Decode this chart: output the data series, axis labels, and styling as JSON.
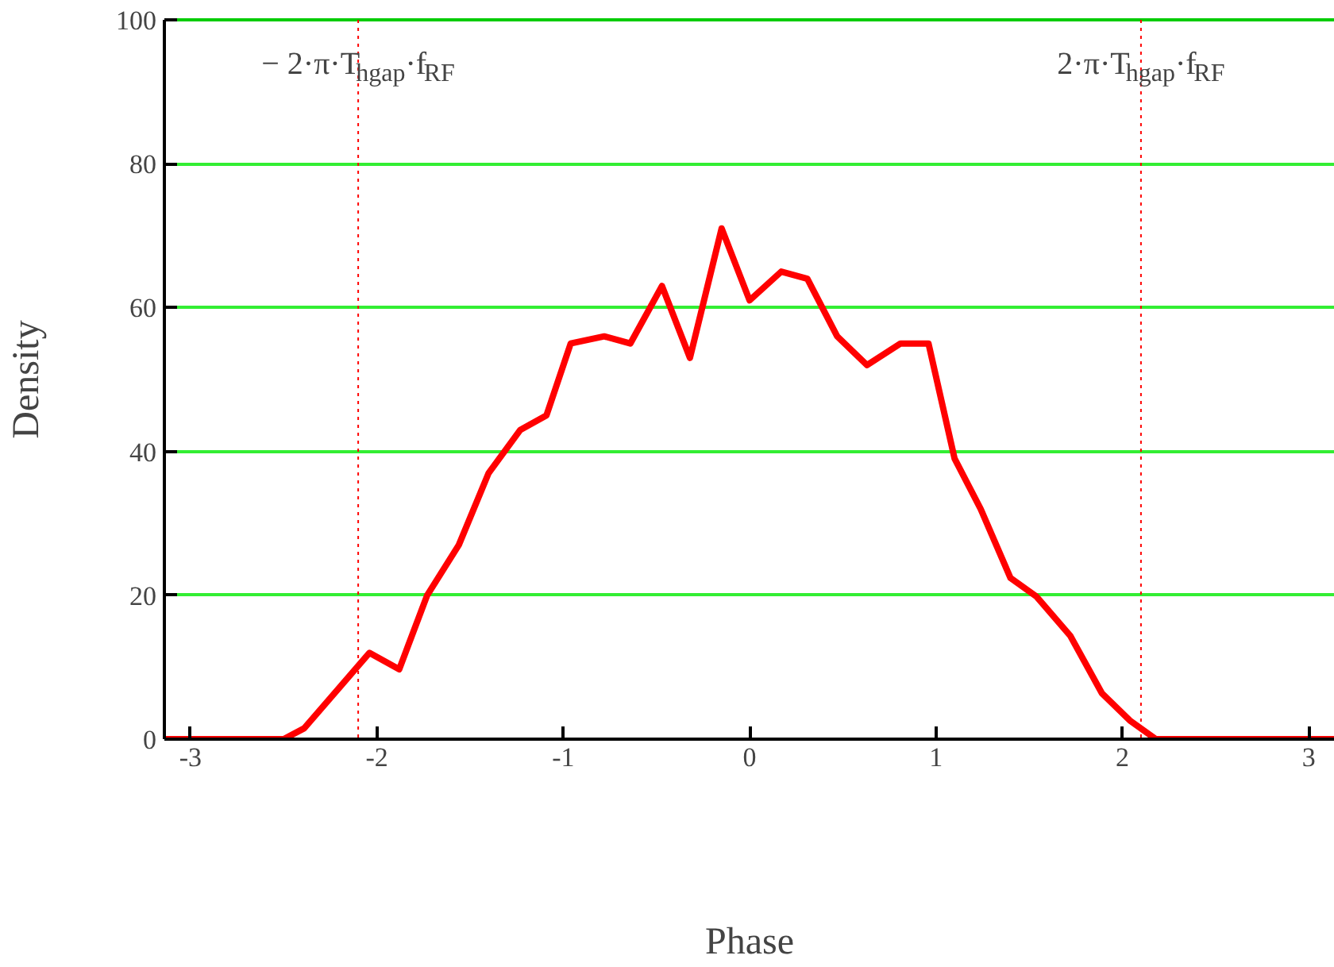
{
  "chart_data": {
    "type": "line",
    "xlabel": "Phase",
    "ylabel": "Density",
    "x": [
      -3.14,
      -2.5,
      -2.39,
      -2.19,
      -2.04,
      -1.88,
      -1.73,
      -1.56,
      -1.4,
      -1.23,
      -1.09,
      -0.96,
      -0.78,
      -0.64,
      -0.47,
      -0.32,
      -0.15,
      0.0,
      0.17,
      0.31,
      0.47,
      0.63,
      0.81,
      0.96,
      1.1,
      1.24,
      1.4,
      1.54,
      1.72,
      1.89,
      2.04,
      2.18,
      3.14
    ],
    "series": [
      {
        "color": "#ff0000",
        "values": [
          0,
          0,
          1.5,
          7.5,
          12,
          9.7,
          20,
          27,
          37,
          43,
          45,
          55,
          56,
          55,
          63,
          53,
          71,
          61,
          65,
          64,
          56,
          52,
          55,
          55,
          39,
          32,
          22.4,
          19.8,
          14.4,
          6.4,
          2.6,
          0,
          0
        ]
      }
    ],
    "xlim": [
      -3.14,
      3.14
    ],
    "ylim": [
      0,
      100
    ],
    "xticks": [
      -3,
      -2,
      -1,
      0,
      1,
      2,
      3
    ],
    "yticks": [
      0,
      20,
      40,
      60,
      80,
      100
    ],
    "grid": "y",
    "marker": "none",
    "line_style": "solid",
    "ref_lines": [
      {
        "axis": "x",
        "value": -2.1,
        "label": "− 2·π·T$_{hgap}$·f$_{RF}$",
        "color": "#ff0000",
        "line_style": "dotted"
      },
      {
        "axis": "x",
        "value": 2.1,
        "label": "2·π·T$_{hgap}$·f$_{RF}$",
        "color": "#ff0000",
        "line_style": "dotted"
      }
    ]
  }
}
